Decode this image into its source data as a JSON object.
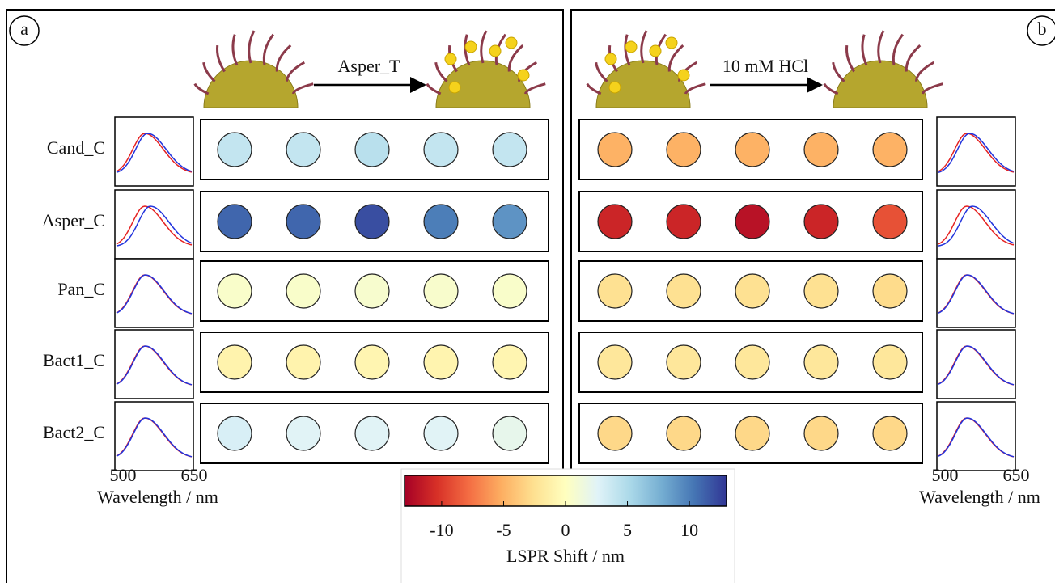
{
  "panels": [
    {
      "label": "a",
      "reaction_label": "Asper_T",
      "shifts": [
        [
          4,
          4,
          4.5,
          4,
          4
        ],
        [
          11,
          11,
          12,
          10,
          9
        ],
        [
          0.5,
          0.5,
          0.7,
          0.6,
          0.5
        ],
        [
          -1,
          -1,
          -0.8,
          -0.9,
          -0.8
        ],
        [
          3,
          2.5,
          2.5,
          2.5,
          2
        ]
      ]
    },
    {
      "label": "b",
      "reaction_label": "10 mM HCl",
      "shifts": [
        [
          -5,
          -5,
          -5,
          -5,
          -5
        ],
        [
          -11,
          -11,
          -12,
          -11,
          -9
        ],
        [
          -2.5,
          -2.5,
          -2.5,
          -2.5,
          -2.8
        ],
        [
          -2,
          -2,
          -2,
          -2,
          -2
        ],
        [
          -3,
          -3,
          -3,
          -3,
          -3
        ]
      ]
    }
  ],
  "row_labels": [
    "Cand_C",
    "Asper_C",
    "Pan_C",
    "Bact1_C",
    "Bact2_C"
  ],
  "spectra_axis": {
    "xticks": [
      500,
      650
    ],
    "xlabel": "Wavelength / nm"
  },
  "colorbar": {
    "lim": [
      -13,
      13
    ],
    "ticks": [
      -10,
      -5,
      0,
      5,
      10
    ],
    "label": "LSPR Shift / nm"
  }
}
